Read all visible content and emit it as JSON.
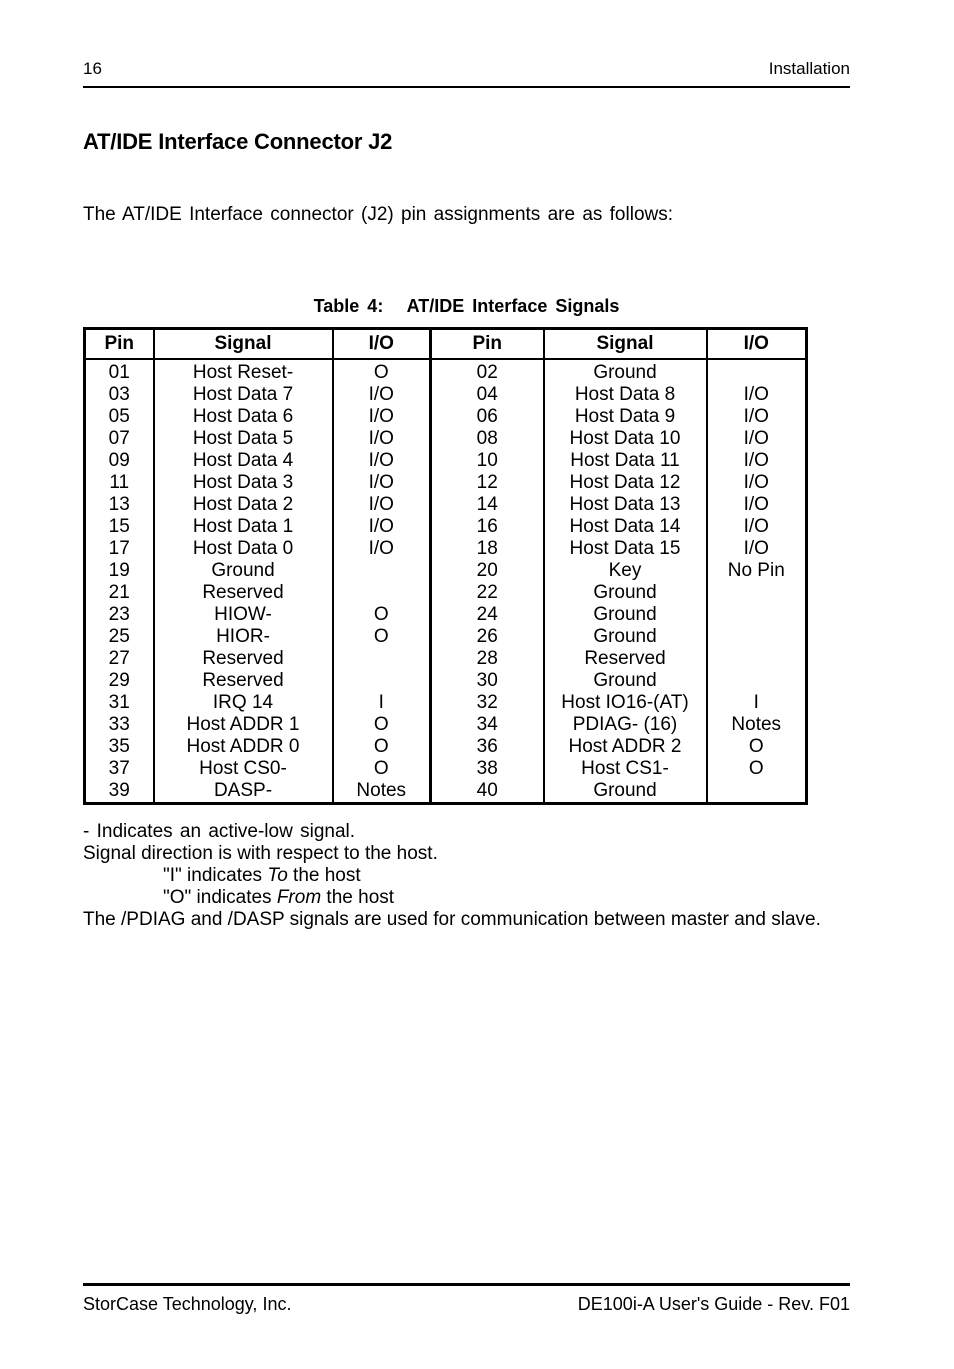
{
  "header": {
    "page_number": "16",
    "section": "Installation"
  },
  "heading": "AT/IDE Interface Connector J2",
  "intro": "The AT/IDE Interface connector (J2) pin assignments are as follows:",
  "table": {
    "title": "Table 4:   AT/IDE Interface Signals",
    "headers": [
      "Pin",
      "Signal",
      "I/O",
      "Pin",
      "Signal",
      "I/O"
    ],
    "rows": [
      [
        "01",
        "Host Reset-",
        "O",
        "02",
        "Ground",
        ""
      ],
      [
        "03",
        "Host Data 7",
        "I/O",
        "04",
        "Host Data 8",
        "I/O"
      ],
      [
        "05",
        "Host Data 6",
        "I/O",
        "06",
        "Host Data 9",
        "I/O"
      ],
      [
        "07",
        "Host Data 5",
        "I/O",
        "08",
        "Host Data 10",
        "I/O"
      ],
      [
        "09",
        "Host Data 4",
        "I/O",
        "10",
        "Host Data 11",
        "I/O"
      ],
      [
        "11",
        "Host Data 3",
        "I/O",
        "12",
        "Host Data 12",
        "I/O"
      ],
      [
        "13",
        "Host Data 2",
        "I/O",
        "14",
        "Host Data 13",
        "I/O"
      ],
      [
        "15",
        "Host Data 1",
        "I/O",
        "16",
        "Host Data 14",
        "I/O"
      ],
      [
        "17",
        "Host Data 0",
        "I/O",
        "18",
        "Host Data 15",
        "I/O"
      ],
      [
        "19",
        "Ground",
        "",
        "20",
        "Key",
        "No Pin"
      ],
      [
        "21",
        "Reserved",
        "",
        "22",
        "Ground",
        ""
      ],
      [
        "23",
        "HIOW-",
        "O",
        "24",
        "Ground",
        ""
      ],
      [
        "25",
        "HIOR-",
        "O",
        "26",
        "Ground",
        ""
      ],
      [
        "27",
        "Reserved",
        "",
        "28",
        "Reserved",
        ""
      ],
      [
        "29",
        "Reserved",
        "",
        "30",
        "Ground",
        ""
      ],
      [
        "31",
        "IRQ 14",
        "I",
        "32",
        "Host IO16-(AT)",
        "I"
      ],
      [
        "33",
        "Host ADDR 1",
        "O",
        "34",
        "PDIAG- (16)",
        "Notes"
      ],
      [
        "35",
        "Host ADDR 0",
        "O",
        "36",
        "Host ADDR 2",
        "O"
      ],
      [
        "37",
        "Host CS0-",
        "O",
        "38",
        "Host CS1-",
        "O"
      ],
      [
        "39",
        "DASP-",
        "Notes",
        "40",
        "Ground",
        ""
      ]
    ]
  },
  "footnotes": {
    "active_low": "- Indicates an active-low signal.",
    "direction": "Signal direction is with respect to the host.",
    "i_line": {
      "prefix": "\"I\" indicates ",
      "italic": "To",
      "suffix": " the host"
    },
    "o_line": {
      "prefix": "\"O\" indicates ",
      "italic": "From",
      "suffix": " the host"
    },
    "pdiag": "The /PDIAG and /DASP signals are used for communication between master and slave."
  },
  "footer": {
    "company": "StorCase Technology, Inc.",
    "document": "DE100i-A User's Guide - Rev. F01"
  }
}
